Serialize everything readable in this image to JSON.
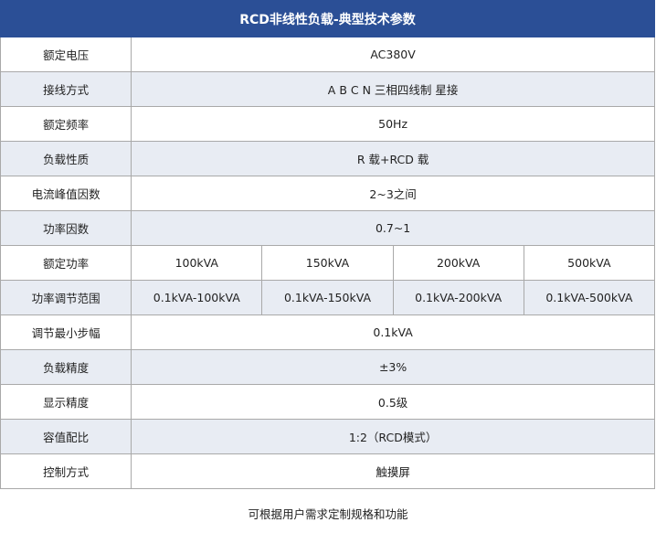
{
  "title": "RCD非线性负载-典型技术参数",
  "rows": [
    {
      "label": "额定电压",
      "value": "AC380V"
    },
    {
      "label": "接线方式",
      "value": "A B C N 三相四线制 星接"
    },
    {
      "label": "额定频率",
      "value": "50Hz"
    },
    {
      "label": "负载性质",
      "value": "R 载+RCD 载"
    },
    {
      "label": "电流峰值因数",
      "value": "2~3之间"
    },
    {
      "label": "功率因数",
      "value": "0.7~1"
    },
    {
      "label": "额定功率",
      "values": [
        "100kVA",
        "150kVA",
        "200kVA",
        "500kVA"
      ]
    },
    {
      "label": "功率调节范围",
      "values": [
        "0.1kVA-100kVA",
        "0.1kVA-150kVA",
        "0.1kVA-200kVA",
        "0.1kVA-500kVA"
      ]
    },
    {
      "label": "调节最小步幅",
      "value": "0.1kVA"
    },
    {
      "label": "负载精度",
      "value": "±3%"
    },
    {
      "label": "显示精度",
      "value": "0.5级"
    },
    {
      "label": "容值配比",
      "value": "1:2（RCD模式）"
    },
    {
      "label": "控制方式",
      "value": "触摸屏"
    }
  ],
  "note": "可根据用户需求定制规格和功能",
  "colors": {
    "header": "#2b4f96",
    "alt_row": "#e8ecf3"
  }
}
